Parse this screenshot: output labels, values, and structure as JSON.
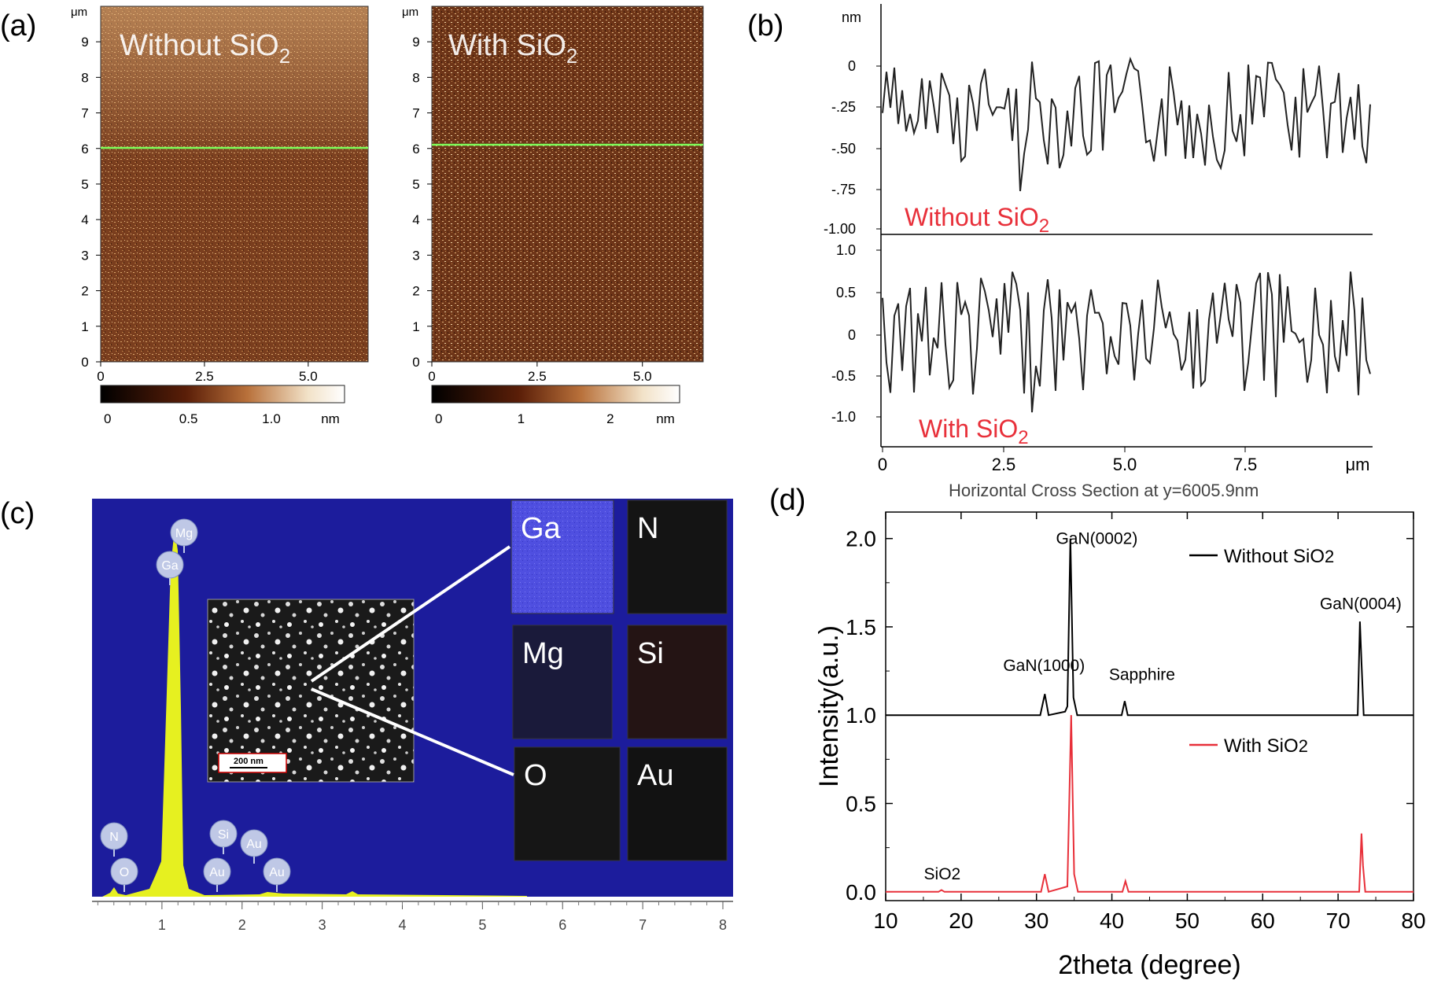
{
  "panel_labels": {
    "a": "(a)",
    "b": "(b)",
    "c": "(c)",
    "d": "(d)"
  },
  "afm": {
    "y_unit": "μm",
    "y_ticks": [
      "0",
      "1",
      "2",
      "3",
      "4",
      "5",
      "6",
      "7",
      "8",
      "9"
    ],
    "x_ticks": [
      "0",
      "2.5",
      "5.0"
    ],
    "left": {
      "label_pre": "Without SiO",
      "label_sub": "2",
      "cbar_ticks": [
        "0",
        "0.5",
        "1.0"
      ],
      "cbar_unit": "nm"
    },
    "right": {
      "label_pre": "With  SiO",
      "label_sub": "2",
      "cbar_ticks": [
        "0",
        "1",
        "2"
      ],
      "cbar_unit": "nm"
    }
  },
  "profile": {
    "top": {
      "label_pre": "Without SiO",
      "label_sub": "2",
      "y_unit": "nm",
      "y_ticks": [
        "0",
        "-.25",
        "-.50",
        "-.75",
        "-1.00"
      ]
    },
    "bottom": {
      "label_pre": "With  SiO",
      "label_sub": "2",
      "y_ticks": [
        "1.0",
        "0.5",
        "0",
        "-0.5",
        "-1.0"
      ]
    },
    "x_ticks": [
      "0",
      "2.5",
      "5.0",
      "7.5"
    ],
    "x_unit": "μm",
    "xlabel": "Horizontal Cross Section at y=6005.9nm"
  },
  "edx": {
    "x_ticks": [
      "1",
      "2",
      "3",
      "4",
      "5",
      "6",
      "7",
      "8"
    ],
    "peak_labels": [
      "Mg",
      "Ga",
      "N",
      "O",
      "Si",
      "Au",
      "Au",
      "Au"
    ],
    "scale_bar": "200 nm",
    "maps": [
      "Ga",
      "N",
      "Mg",
      "Si",
      "O",
      "Au"
    ]
  },
  "chart_data": {
    "type": "line",
    "xlabel": "2theta (degree)",
    "ylabel": "Intensity(a.u.)",
    "xlim": [
      10,
      80
    ],
    "ylim": [
      -0.05,
      2.15
    ],
    "x_ticks": [
      "10",
      "20",
      "30",
      "40",
      "50",
      "60",
      "70",
      "80"
    ],
    "y_ticks": [
      "0.0",
      "0.5",
      "1.0",
      "1.5",
      "2.0"
    ],
    "legend_position": "top-right / right",
    "series": [
      {
        "name": "Without SiO2",
        "legend_pre": "Without SiO",
        "legend_sub": "2",
        "color": "#000000",
        "points": [
          [
            10,
            1.0
          ],
          [
            30.5,
            1.0
          ],
          [
            31.1,
            1.12
          ],
          [
            31.6,
            1.0
          ],
          [
            33.8,
            1.02
          ],
          [
            34.1,
            1.05
          ],
          [
            34.5,
            2.0
          ],
          [
            34.9,
            1.1
          ],
          [
            35.4,
            1.0
          ],
          [
            41.3,
            1.0
          ],
          [
            41.7,
            1.08
          ],
          [
            42.1,
            1.0
          ],
          [
            72.6,
            1.0
          ],
          [
            72.9,
            1.53
          ],
          [
            73.1,
            1.3
          ],
          [
            73.4,
            1.0
          ],
          [
            80,
            1.0
          ]
        ]
      },
      {
        "name": "With SiO2",
        "legend_pre": "With SiO",
        "legend_sub": "2",
        "color": "#e8303a",
        "points": [
          [
            10,
            0.0
          ],
          [
            17.0,
            0.0
          ],
          [
            17.4,
            0.01
          ],
          [
            17.8,
            0.0
          ],
          [
            30.6,
            0.0
          ],
          [
            31.1,
            0.1
          ],
          [
            31.6,
            0.0
          ],
          [
            34.1,
            0.03
          ],
          [
            34.6,
            1.0
          ],
          [
            35.0,
            0.1
          ],
          [
            35.5,
            0.0
          ],
          [
            41.4,
            0.0
          ],
          [
            41.8,
            0.06
          ],
          [
            42.2,
            0.0
          ],
          [
            72.8,
            0.0
          ],
          [
            73.1,
            0.33
          ],
          [
            73.3,
            0.15
          ],
          [
            73.6,
            0.0
          ],
          [
            80,
            0.0
          ]
        ]
      }
    ],
    "annotations": [
      {
        "text": "GaN(1000)",
        "x": 31,
        "y": 1.25
      },
      {
        "text": "GaN(0002)",
        "x": 38,
        "y": 1.97
      },
      {
        "text": "Sapphire",
        "x": 44,
        "y": 1.2
      },
      {
        "text": "GaN(0004)",
        "x": 73,
        "y": 1.6
      },
      {
        "text": "SiO2",
        "x": 17.5,
        "y": 0.07
      }
    ]
  }
}
